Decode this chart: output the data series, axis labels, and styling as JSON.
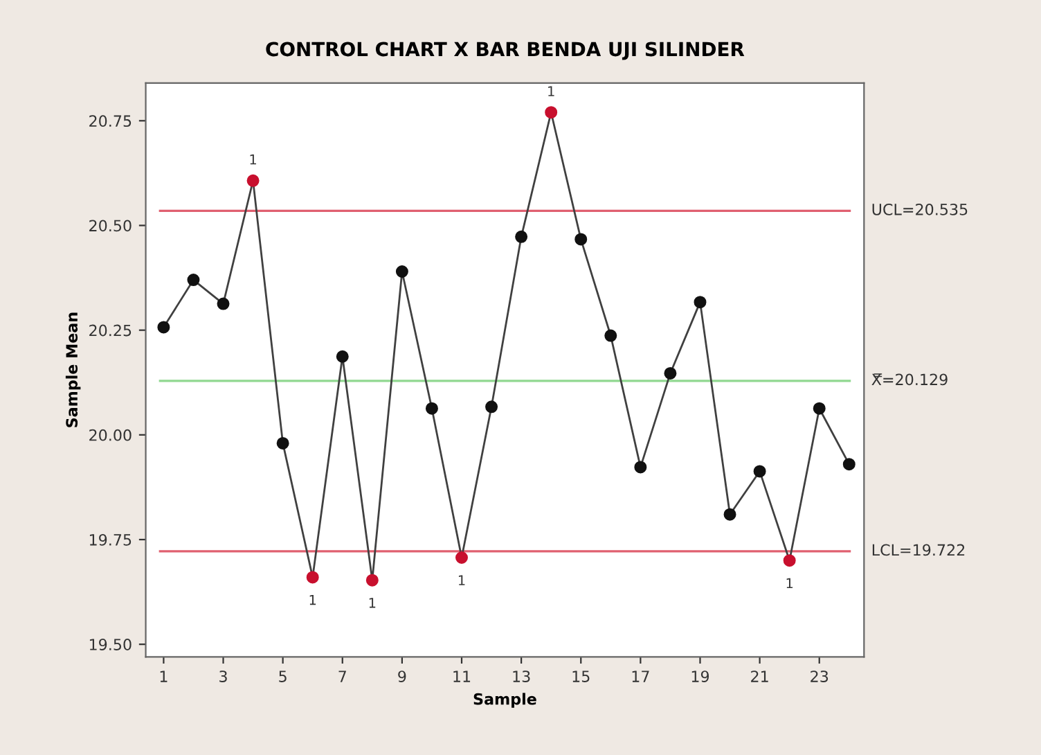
{
  "chart_data": {
    "type": "line",
    "title": "CONTROL CHART X BAR BENDA UJI SILINDER",
    "xlabel": "Sample",
    "ylabel": "Sample Mean",
    "x": [
      1,
      2,
      3,
      4,
      5,
      6,
      7,
      8,
      9,
      10,
      11,
      12,
      13,
      14,
      15,
      16,
      17,
      18,
      19,
      20,
      21,
      22,
      23,
      24
    ],
    "series": [
      {
        "color": "#404040",
        "values": [
          20.257,
          20.37,
          20.313,
          20.607,
          19.98,
          19.66,
          20.187,
          19.653,
          20.39,
          20.063,
          19.707,
          20.067,
          20.473,
          20.77,
          20.467,
          20.237,
          19.923,
          20.147,
          20.317,
          19.81,
          19.913,
          19.7,
          20.063,
          19.93
        ],
        "colors": [
          "#111111",
          "#111111",
          "#111111",
          "#c8102e",
          "#111111",
          "#c8102e",
          "#111111",
          "#c8102e",
          "#111111",
          "#111111",
          "#c8102e",
          "#111111",
          "#111111",
          "#c8102e",
          "#111111",
          "#111111",
          "#111111",
          "#111111",
          "#111111",
          "#111111",
          "#111111",
          "#c8102e",
          "#111111",
          "#111111"
        ]
      }
    ],
    "marker": "circle",
    "line_style": "solid",
    "xlim": [
      0.4,
      24.5
    ],
    "xticks": [
      1,
      3,
      5,
      7,
      9,
      11,
      13,
      15,
      17,
      19,
      21,
      23
    ],
    "ylim": [
      19.47,
      20.84
    ],
    "yticks": [
      {
        "value": 19.5,
        "label": "19.50"
      },
      {
        "value": 19.75,
        "label": "19.75"
      },
      {
        "value": 20.0,
        "label": "20.00"
      },
      {
        "value": 20.25,
        "label": "20.25"
      },
      {
        "value": 20.5,
        "label": "20.50"
      },
      {
        "value": 20.75,
        "label": "20.75"
      }
    ],
    "ref_lines": [
      {
        "axis": "y",
        "value": 20.535,
        "label": "UCL=20.535",
        "color": "#e06070"
      },
      {
        "axis": "y",
        "value": 20.129,
        "label": "X̿=20.129",
        "color": "#90d890"
      },
      {
        "axis": "y",
        "value": 19.722,
        "label": "LCL=19.722",
        "color": "#e06070"
      }
    ],
    "annotations": [
      {
        "text": "1",
        "x": 4,
        "y": 20.607
      },
      {
        "text": "1",
        "x": 6,
        "y": 19.66
      },
      {
        "text": "1",
        "x": 8,
        "y": 19.653
      },
      {
        "text": "1",
        "x": 11,
        "y": 19.707
      },
      {
        "text": "1",
        "x": 14,
        "y": 20.77
      },
      {
        "text": "1",
        "x": 22,
        "y": 19.7
      }
    ],
    "grid": false
  }
}
